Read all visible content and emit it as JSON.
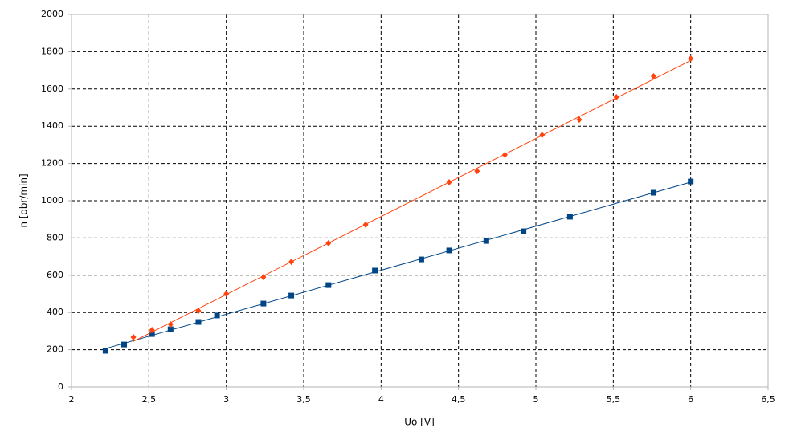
{
  "chart_data": {
    "type": "scatter",
    "xlabel": "Uo [V]",
    "ylabel": "n [obr/min]",
    "xlim": [
      2,
      6.5
    ],
    "xticks": [
      2,
      {
        "value": 2.5,
        "label": "2,5"
      },
      3,
      {
        "value": 3.5,
        "label": "3,5"
      },
      4,
      {
        "value": 4.5,
        "label": "4,5"
      },
      5,
      {
        "value": 5.5,
        "label": "5,5"
      },
      6,
      {
        "value": 6.5,
        "label": "6,5"
      }
    ],
    "ylim": [
      0,
      2000
    ],
    "yticks": [
      0,
      200,
      400,
      600,
      800,
      1000,
      1200,
      1400,
      1600,
      1800,
      2000
    ],
    "grid": true,
    "trendline": true,
    "series": [
      {
        "color": "#004586",
        "marker": "square",
        "x": [
          2.22,
          2.34,
          2.52,
          2.64,
          2.82,
          2.94,
          3.24,
          3.42,
          3.66,
          3.96,
          4.26,
          4.44,
          4.68,
          4.92,
          5.22,
          5.76,
          6.0
        ],
        "values": [
          194,
          228,
          284,
          310,
          349,
          384,
          448,
          491,
          547,
          625,
          685,
          733,
          784,
          836,
          914,
          1043,
          1103
        ]
      },
      {
        "color": "#ff420e",
        "marker": "diamond",
        "x": [
          2.4,
          2.52,
          2.64,
          2.82,
          3.0,
          3.24,
          3.42,
          3.66,
          3.9,
          4.44,
          4.62,
          4.8,
          5.04,
          5.28,
          5.52,
          5.76,
          6.0
        ],
        "values": [
          267,
          306,
          336,
          409,
          500,
          590,
          672,
          772,
          871,
          1099,
          1159,
          1246,
          1353,
          1435,
          1556,
          1668,
          1763
        ]
      }
    ]
  }
}
